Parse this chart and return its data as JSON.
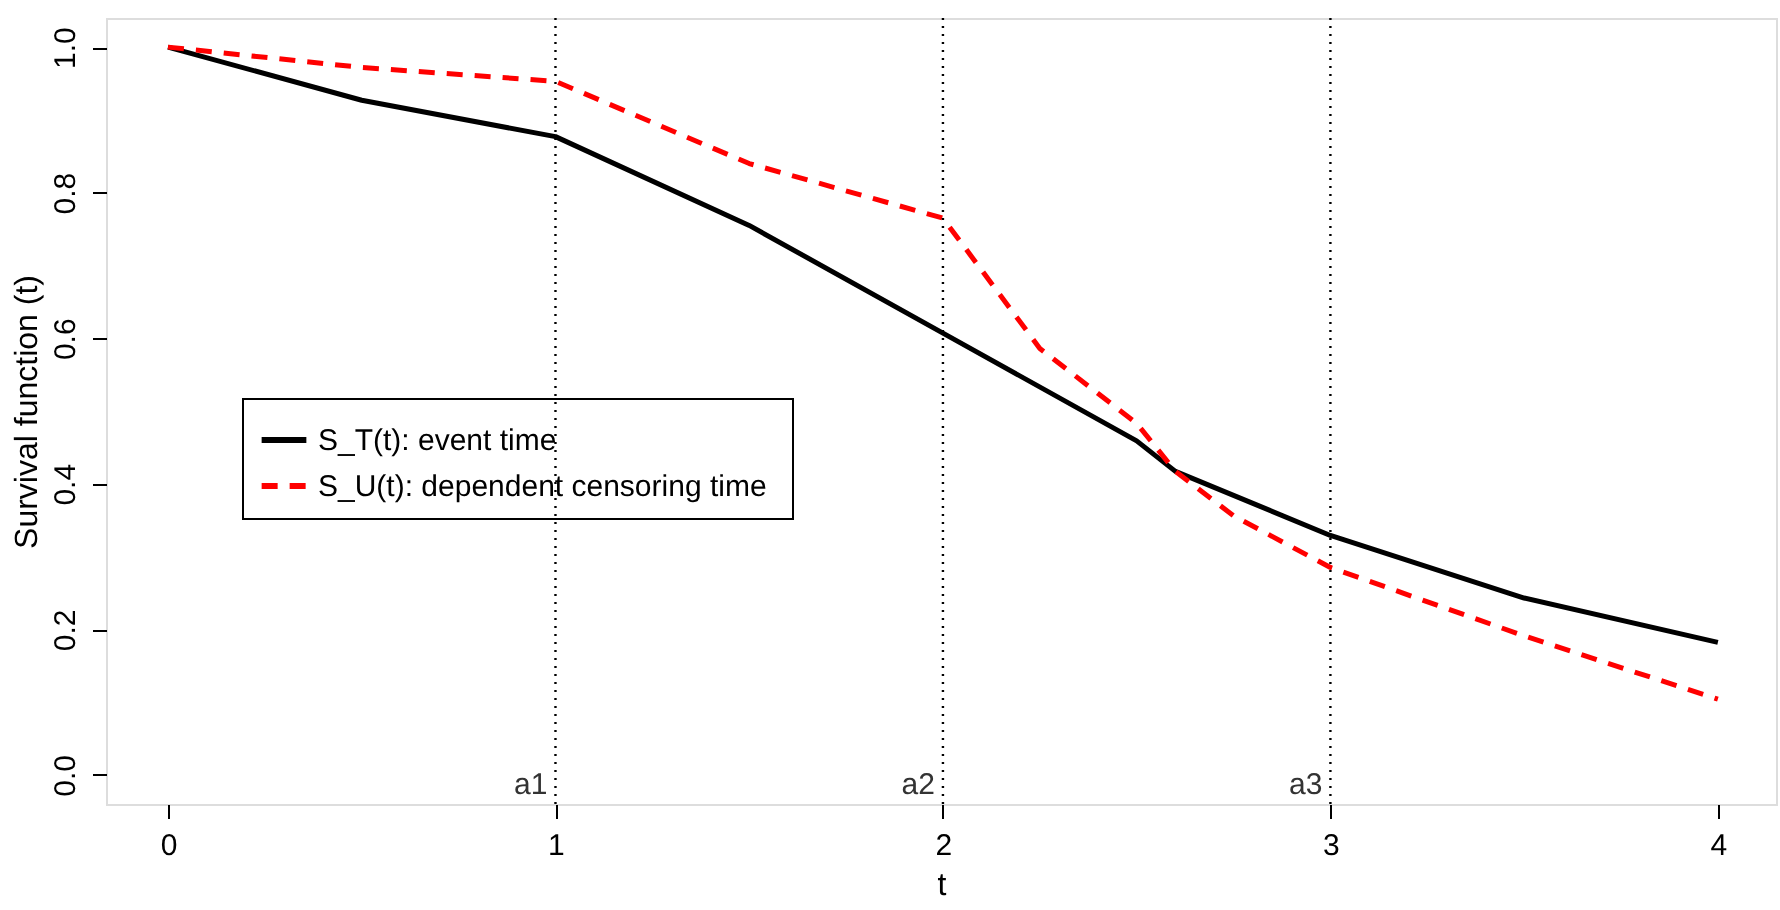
{
  "chart_data": {
    "type": "line",
    "xlabel": "t",
    "ylabel": "Survival function (t)",
    "xlim": [
      -0.16,
      4.15
    ],
    "ylim": [
      -0.04,
      1.04
    ],
    "xticks": [
      0,
      1,
      2,
      3,
      4
    ],
    "yticks": [
      {
        "value": 0,
        "label": "0.0"
      },
      0.2,
      0.4,
      0.6,
      0.8,
      {
        "value": 1,
        "label": "1.0"
      }
    ],
    "grid": false,
    "legend": "left",
    "marker": "none",
    "series": [
      {
        "name": "S_T(t):  event time",
        "color": "#000000",
        "line_style": "solid",
        "x": [
          0,
          0.5,
          1,
          1.5,
          2,
          2.5,
          2.6,
          3,
          3.5,
          4
        ],
        "values": [
          1.0,
          0.927,
          0.877,
          0.755,
          0.607,
          0.459,
          0.417,
          0.329,
          0.243,
          0.182
        ]
      },
      {
        "name": "S_U(t):  dependent censoring time",
        "color": "#ff0000",
        "line_style": "dashed",
        "x": [
          0,
          0.5,
          1,
          1.5,
          2,
          2.25,
          2.5,
          2.6,
          2.75,
          3,
          3.5,
          4
        ],
        "values": [
          1.0,
          0.972,
          0.953,
          0.84,
          0.765,
          0.586,
          0.483,
          0.417,
          0.356,
          0.285,
          0.191,
          0.104
        ]
      }
    ],
    "ref_lines": [
      {
        "axis": "x",
        "value": 1,
        "label": "a1",
        "color": "#000000",
        "line_style": "dotted"
      },
      {
        "axis": "x",
        "value": 2,
        "label": "a2",
        "color": "#000000",
        "line_style": "dotted"
      },
      {
        "axis": "x",
        "value": 3,
        "label": "a3",
        "color": "#000000",
        "line_style": "dotted"
      }
    ]
  }
}
